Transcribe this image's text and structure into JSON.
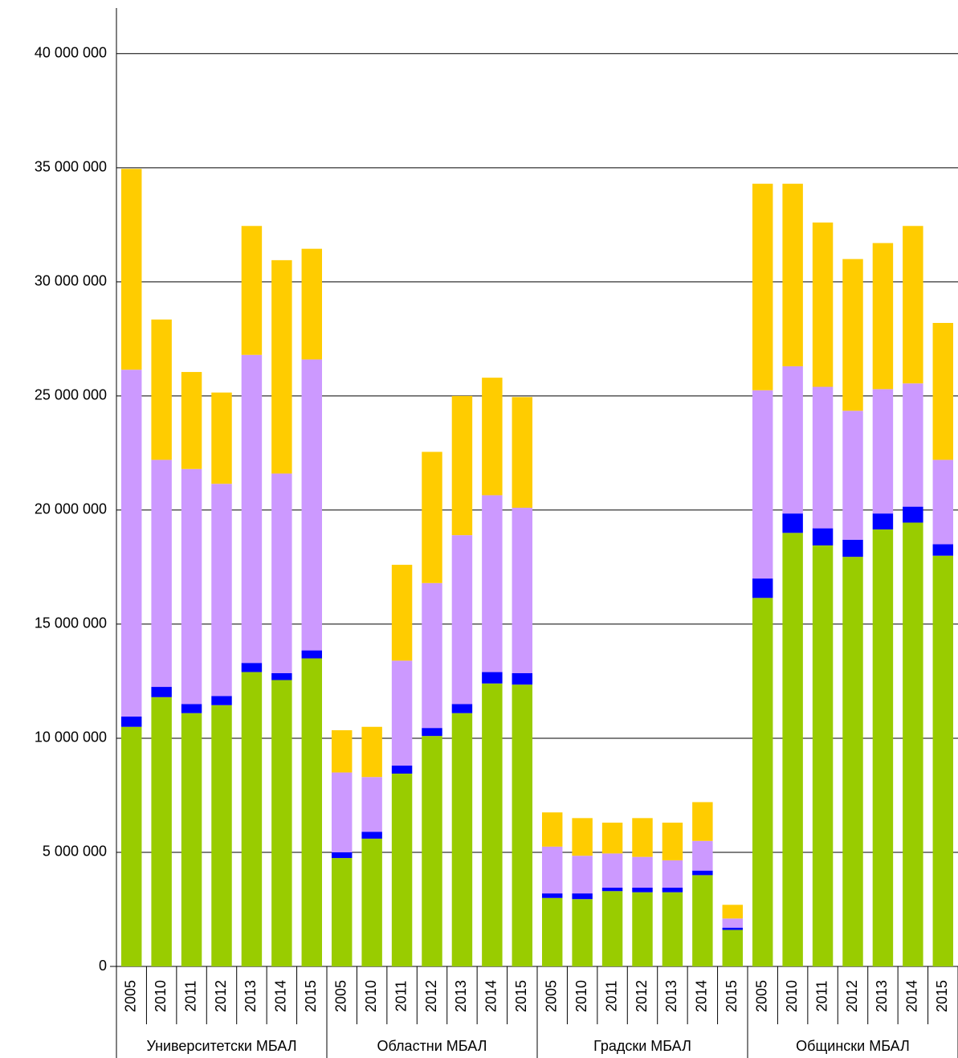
{
  "chart_data": {
    "type": "stacked-bar",
    "groups": [
      "Университетски МБАЛ",
      "Областни МБАЛ",
      "Градски МБАЛ",
      "Общински МБАЛ"
    ],
    "categories": [
      "2005",
      "2010",
      "2011",
      "2012",
      "2013",
      "2014",
      "2015",
      "2005",
      "2010",
      "2011",
      "2012",
      "2013",
      "2014",
      "2015",
      "2005",
      "2010",
      "2011",
      "2012",
      "2013",
      "2014",
      "2015",
      "2005",
      "2010",
      "2011",
      "2012",
      "2013",
      "2014",
      "2015"
    ],
    "series": [
      {
        "color": "#99cc00",
        "values": [
          10500000,
          11800000,
          11100000,
          11450000,
          12900000,
          12550000,
          13500000,
          4750000,
          5600000,
          8450000,
          10100000,
          11100000,
          12400000,
          12350000,
          3000000,
          2950000,
          3300000,
          3250000,
          3250000,
          4000000,
          1600000,
          16150000,
          19000000,
          18450000,
          17950000,
          19150000,
          19450000,
          18000000
        ]
      },
      {
        "color": "#0000ff",
        "values": [
          450000,
          450000,
          400000,
          400000,
          400000,
          300000,
          350000,
          250000,
          300000,
          350000,
          350000,
          400000,
          500000,
          500000,
          200000,
          250000,
          150000,
          200000,
          200000,
          200000,
          100000,
          850000,
          850000,
          750000,
          750000,
          700000,
          700000,
          500000
        ]
      },
      {
        "color": "#cc99ff",
        "values": [
          15200000,
          9950000,
          10300000,
          9300000,
          13500000,
          8750000,
          12750000,
          3500000,
          2400000,
          4600000,
          6350000,
          7400000,
          7750000,
          7250000,
          2050000,
          1650000,
          1500000,
          1350000,
          1200000,
          1300000,
          400000,
          8250000,
          6450000,
          6200000,
          5650000,
          5450000,
          5400000,
          3700000
        ]
      },
      {
        "color": "#ffcc00",
        "values": [
          8800000,
          6150000,
          4250000,
          4000000,
          5650000,
          9350000,
          4850000,
          1850000,
          2200000,
          4200000,
          5750000,
          6100000,
          5150000,
          4850000,
          1500000,
          1650000,
          1350000,
          1700000,
          1650000,
          1700000,
          600000,
          9050000,
          8000000,
          7200000,
          6650000,
          6400000,
          6900000,
          6000000
        ]
      }
    ],
    "ylim": [
      0,
      42000000
    ],
    "yticks": [
      0,
      {
        "value": 5000000,
        "label": "5 000 000"
      },
      {
        "value": 10000000,
        "label": "10 000 000"
      },
      {
        "value": 15000000,
        "label": "15 000 000"
      },
      {
        "value": 20000000,
        "label": "20 000 000"
      },
      {
        "value": 25000000,
        "label": "25 000 000"
      },
      {
        "value": 30000000,
        "label": "30 000 000"
      },
      {
        "value": 35000000,
        "label": "35 000 000"
      },
      {
        "value": 40000000,
        "label": "40 000 000"
      }
    ],
    "grid": true
  }
}
